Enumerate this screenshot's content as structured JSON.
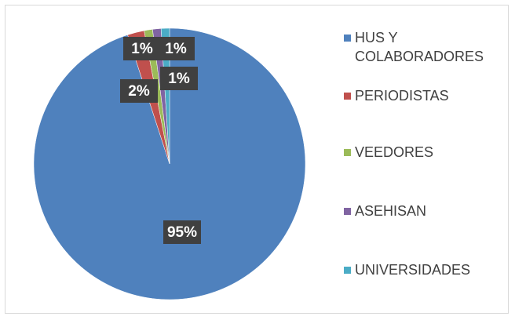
{
  "chart_data": {
    "type": "pie",
    "categories": [
      "HUS Y COLABORADORES",
      "PERIODISTAS",
      "VEEDORES",
      "ASEHISAN",
      "UNIVERSIDADES"
    ],
    "values": [
      95,
      2,
      1,
      1,
      1
    ],
    "value_labels": [
      "95%",
      "2%",
      "1%",
      "1%",
      "1%"
    ],
    "colors": [
      "#4f81bd",
      "#c0504d",
      "#9bbb59",
      "#8064a2",
      "#4bacc6"
    ],
    "legend": "right"
  }
}
